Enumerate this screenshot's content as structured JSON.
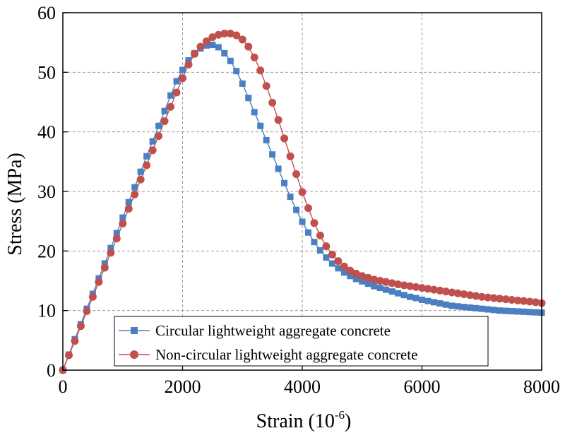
{
  "chart_data": {
    "type": "line",
    "title": "",
    "xlabel": "Strain (10",
    "xlabel_sup": "-6",
    "xlabel_close": ")",
    "ylabel": "Stress (MPa)",
    "xlim": [
      0,
      8000
    ],
    "ylim": [
      0,
      60
    ],
    "xticks": [
      0,
      2000,
      4000,
      6000,
      8000
    ],
    "yticks": [
      0,
      10,
      20,
      30,
      40,
      50,
      60
    ],
    "xtick_labels": [
      "0",
      "2000",
      "4000",
      "6000",
      "8000"
    ],
    "ytick_labels": [
      "0",
      "10",
      "20",
      "30",
      "40",
      "50",
      "60"
    ],
    "grid": true,
    "legend_position": "bottom-left",
    "series": [
      {
        "name": "Circular lightweight aggregate concrete",
        "color": "#4a7fc1",
        "marker": "square",
        "x": [
          0,
          100,
          200,
          300,
          400,
          500,
          600,
          700,
          800,
          900,
          1000,
          1100,
          1200,
          1300,
          1400,
          1500,
          1600,
          1700,
          1800,
          1900,
          2000,
          2100,
          2200,
          2300,
          2400,
          2500,
          2600,
          2700,
          2800,
          2900,
          3000,
          3100,
          3200,
          3300,
          3400,
          3500,
          3600,
          3700,
          3800,
          3900,
          4000,
          4100,
          4200,
          4300,
          4400,
          4500,
          4600,
          4700,
          4800,
          4900,
          5000,
          5100,
          5200,
          5300,
          5400,
          5500,
          5600,
          5700,
          5800,
          5900,
          6000,
          6100,
          6200,
          6300,
          6400,
          6500,
          6600,
          6700,
          6800,
          6900,
          7000,
          7100,
          7200,
          7300,
          7400,
          7500,
          7600,
          7700,
          7800,
          7900,
          8000
        ],
        "y": [
          0,
          2.6,
          5.2,
          7.7,
          10.3,
          12.8,
          15.4,
          17.9,
          20.5,
          23.0,
          25.6,
          28.2,
          30.7,
          33.3,
          35.9,
          38.4,
          41.0,
          43.5,
          46.1,
          48.5,
          50.4,
          52.0,
          53.2,
          54.0,
          54.5,
          54.6,
          54.2,
          53.2,
          51.9,
          50.2,
          48.1,
          45.7,
          43.3,
          41.0,
          38.6,
          36.2,
          33.8,
          31.4,
          29.1,
          26.9,
          24.9,
          23.1,
          21.5,
          20.1,
          18.9,
          17.9,
          17.1,
          16.4,
          15.8,
          15.3,
          14.9,
          14.5,
          14.1,
          13.8,
          13.5,
          13.2,
          12.9,
          12.6,
          12.3,
          12.1,
          11.8,
          11.6,
          11.4,
          11.2,
          11.0,
          10.8,
          10.7,
          10.6,
          10.5,
          10.4,
          10.3,
          10.2,
          10.1,
          10.0,
          9.95,
          9.9,
          9.85,
          9.8,
          9.75,
          9.7,
          9.65
        ]
      },
      {
        "name": "Non-circular lightweight aggregate concrete",
        "color": "#c0504d",
        "marker": "circle",
        "x": [
          0,
          100,
          200,
          300,
          400,
          500,
          600,
          700,
          800,
          900,
          1000,
          1100,
          1200,
          1300,
          1400,
          1500,
          1600,
          1700,
          1800,
          1900,
          2000,
          2100,
          2200,
          2300,
          2400,
          2500,
          2600,
          2700,
          2800,
          2900,
          3000,
          3100,
          3200,
          3300,
          3400,
          3500,
          3600,
          3700,
          3800,
          3900,
          4000,
          4100,
          4200,
          4300,
          4400,
          4500,
          4600,
          4700,
          4800,
          4900,
          5000,
          5100,
          5200,
          5300,
          5400,
          5500,
          5600,
          5700,
          5800,
          5900,
          6000,
          6100,
          6200,
          6300,
          6400,
          6500,
          6600,
          6700,
          6800,
          6900,
          7000,
          7100,
          7200,
          7300,
          7400,
          7500,
          7600,
          7700,
          7800,
          7900,
          8000
        ],
        "y": [
          0,
          2.5,
          4.9,
          7.4,
          9.9,
          12.3,
          14.8,
          17.2,
          19.7,
          22.1,
          24.6,
          27.1,
          29.5,
          32.0,
          34.4,
          36.9,
          39.3,
          41.8,
          44.2,
          46.6,
          49.0,
          51.3,
          53.1,
          54.3,
          55.2,
          55.9,
          56.3,
          56.5,
          56.5,
          56.2,
          55.5,
          54.3,
          52.5,
          50.3,
          47.7,
          44.9,
          42.0,
          38.9,
          35.9,
          32.9,
          29.9,
          27.2,
          24.7,
          22.6,
          20.8,
          19.4,
          18.3,
          17.4,
          16.7,
          16.2,
          15.8,
          15.5,
          15.2,
          15.0,
          14.8,
          14.6,
          14.4,
          14.25,
          14.1,
          13.95,
          13.8,
          13.65,
          13.5,
          13.35,
          13.2,
          13.05,
          12.9,
          12.75,
          12.6,
          12.45,
          12.3,
          12.2,
          12.1,
          12.0,
          11.9,
          11.8,
          11.7,
          11.6,
          11.5,
          11.4,
          11.25
        ]
      }
    ]
  }
}
